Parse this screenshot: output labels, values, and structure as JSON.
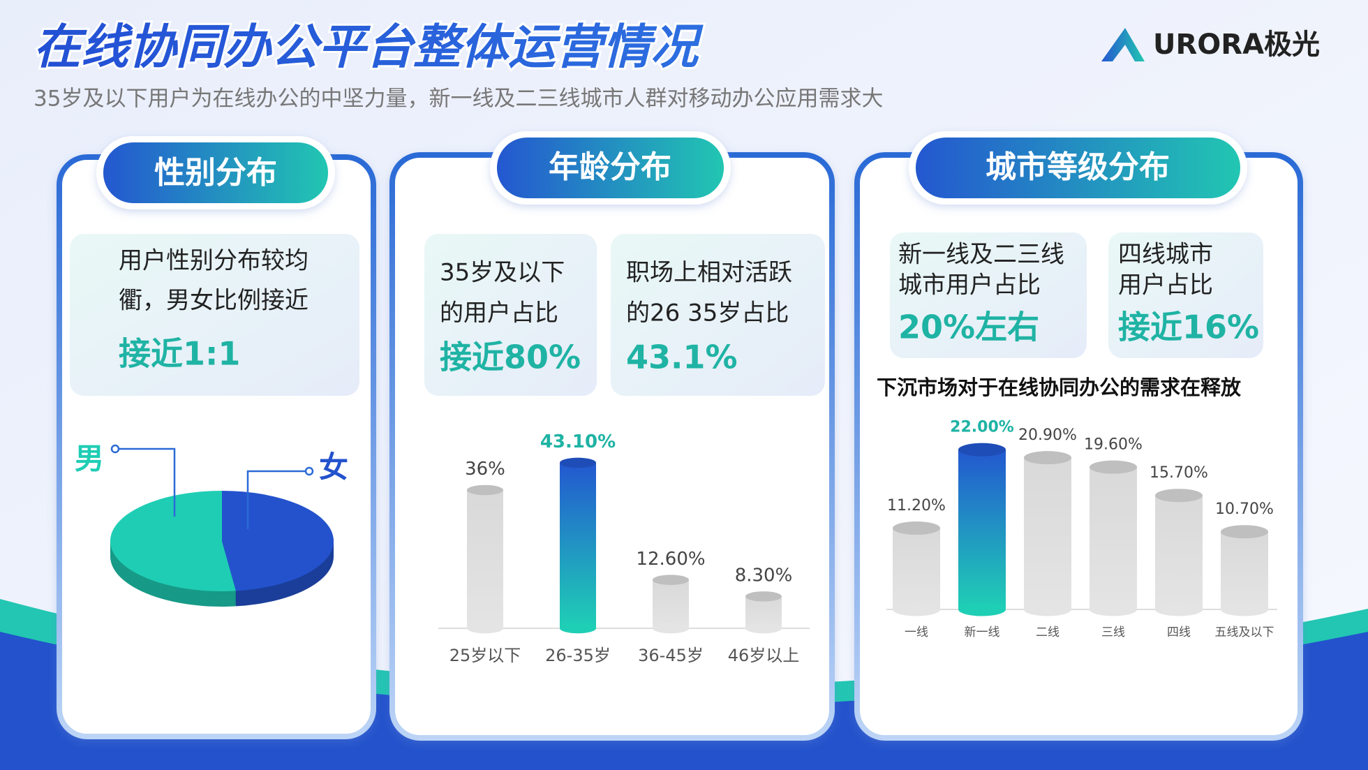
{
  "header": {
    "title": "在线协同办公平台整体运营情况",
    "subtitle": "35岁及以下用户为在线办公的中坚力量，新一线及二三线城市人群对移动办公应用需求大",
    "logo": "URORA极光"
  },
  "panels": [
    {
      "tab": "性别分布",
      "boxes": [
        {
          "lines": [
            "用户性别分布较均",
            "衢，男女比例接近"
          ],
          "highlight": "接近1:1"
        }
      ]
    },
    {
      "tab": "年龄分布",
      "boxes": [
        {
          "lines": [
            "35岁及以下",
            "的用户占比"
          ],
          "highlight": "接近80%"
        },
        {
          "lines": [
            "职场上相对活跃",
            "的26 35岁占比"
          ],
          "highlight": "43.1%"
        }
      ]
    },
    {
      "tab": "城市等级分布",
      "boxes": [
        {
          "lines": [
            "新一线及二三线",
            "城市用户占比"
          ],
          "highlight": "20%左右"
        },
        {
          "lines": [
            "四线城市",
            "用户占比"
          ],
          "highlight": "接近16%"
        }
      ]
    }
  ],
  "chart_data": [
    {
      "type": "pie",
      "categories": [
        "男",
        "女"
      ],
      "values": [
        52,
        48
      ],
      "colors": [
        "#1fcdb4",
        "#2352cc"
      ]
    },
    {
      "type": "bar",
      "categories": [
        "25岁以下",
        "26-35岁",
        "36-45岁",
        "46岁以上"
      ],
      "values": [
        36,
        43.1,
        12.6,
        8.3
      ],
      "value_labels": [
        "36%",
        "43.10%",
        "12.60%",
        "8.30%"
      ],
      "colors": [
        [
          "#d9d9d9",
          "#e4e4e4"
        ],
        [
          "#2358d0",
          "#1fcfb5"
        ],
        [
          "#d9d9d9",
          "#e4e4e4"
        ],
        [
          "#d9d9d9",
          "#e4e4e4"
        ]
      ]
    },
    {
      "type": "bar",
      "title": "下沉市场对于在线协同办公的需求在释放",
      "categories": [
        "一线",
        "新一线",
        "二线",
        "三线",
        "四线",
        "五线及以下"
      ],
      "values": [
        11.2,
        22,
        20.9,
        19.6,
        15.7,
        10.7
      ],
      "value_labels": [
        "11.20%",
        "22.00%",
        "20.90%",
        "19.60%",
        "15.70%",
        "10.70%"
      ],
      "colors": [
        [
          "#d9d9d9",
          "#e4e4e4"
        ],
        [
          "#2358d0",
          "#1fcfb5"
        ],
        [
          "#d9d9d9",
          "#e4e4e4"
        ],
        [
          "#d9d9d9",
          "#e4e4e4"
        ],
        [
          "#d9d9d9",
          "#e4e4e4"
        ],
        [
          "#d9d9d9",
          "#e4e4e4"
        ]
      ]
    }
  ]
}
